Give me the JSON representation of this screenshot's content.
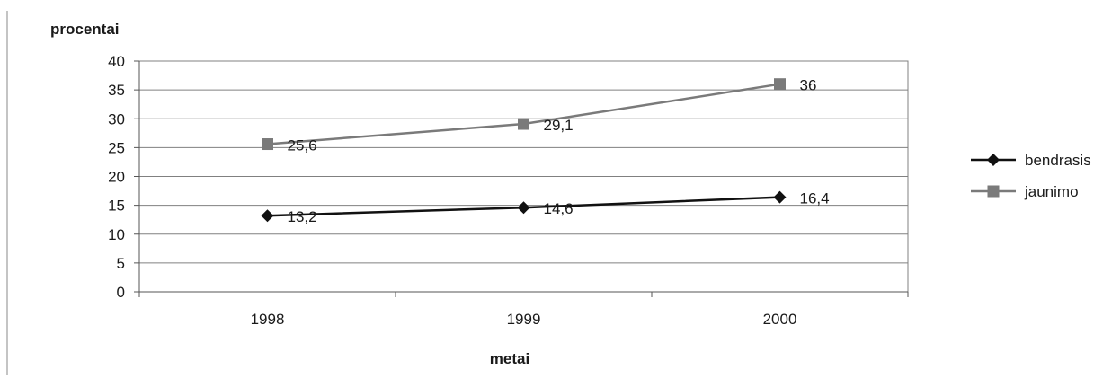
{
  "chart_data": {
    "type": "line",
    "ylabel": "procentai",
    "xlabel": "metai",
    "categories": [
      "1998",
      "1999",
      "2000"
    ],
    "ylim": [
      0,
      40
    ],
    "yticks": [
      0,
      5,
      10,
      15,
      20,
      25,
      30,
      35,
      40
    ],
    "grid": true,
    "legend_position": "right",
    "series": [
      {
        "name": "bendrasis",
        "values": [
          13.2,
          14.6,
          16.4
        ],
        "labels": [
          "13,2",
          "14,6",
          "16,4"
        ],
        "color": "#111111",
        "marker": "diamond"
      },
      {
        "name": "jaunimo",
        "values": [
          25.6,
          29.1,
          36
        ],
        "labels": [
          "25,6",
          "29,1",
          "36"
        ],
        "color": "#7a7a7a",
        "marker": "square"
      }
    ]
  }
}
